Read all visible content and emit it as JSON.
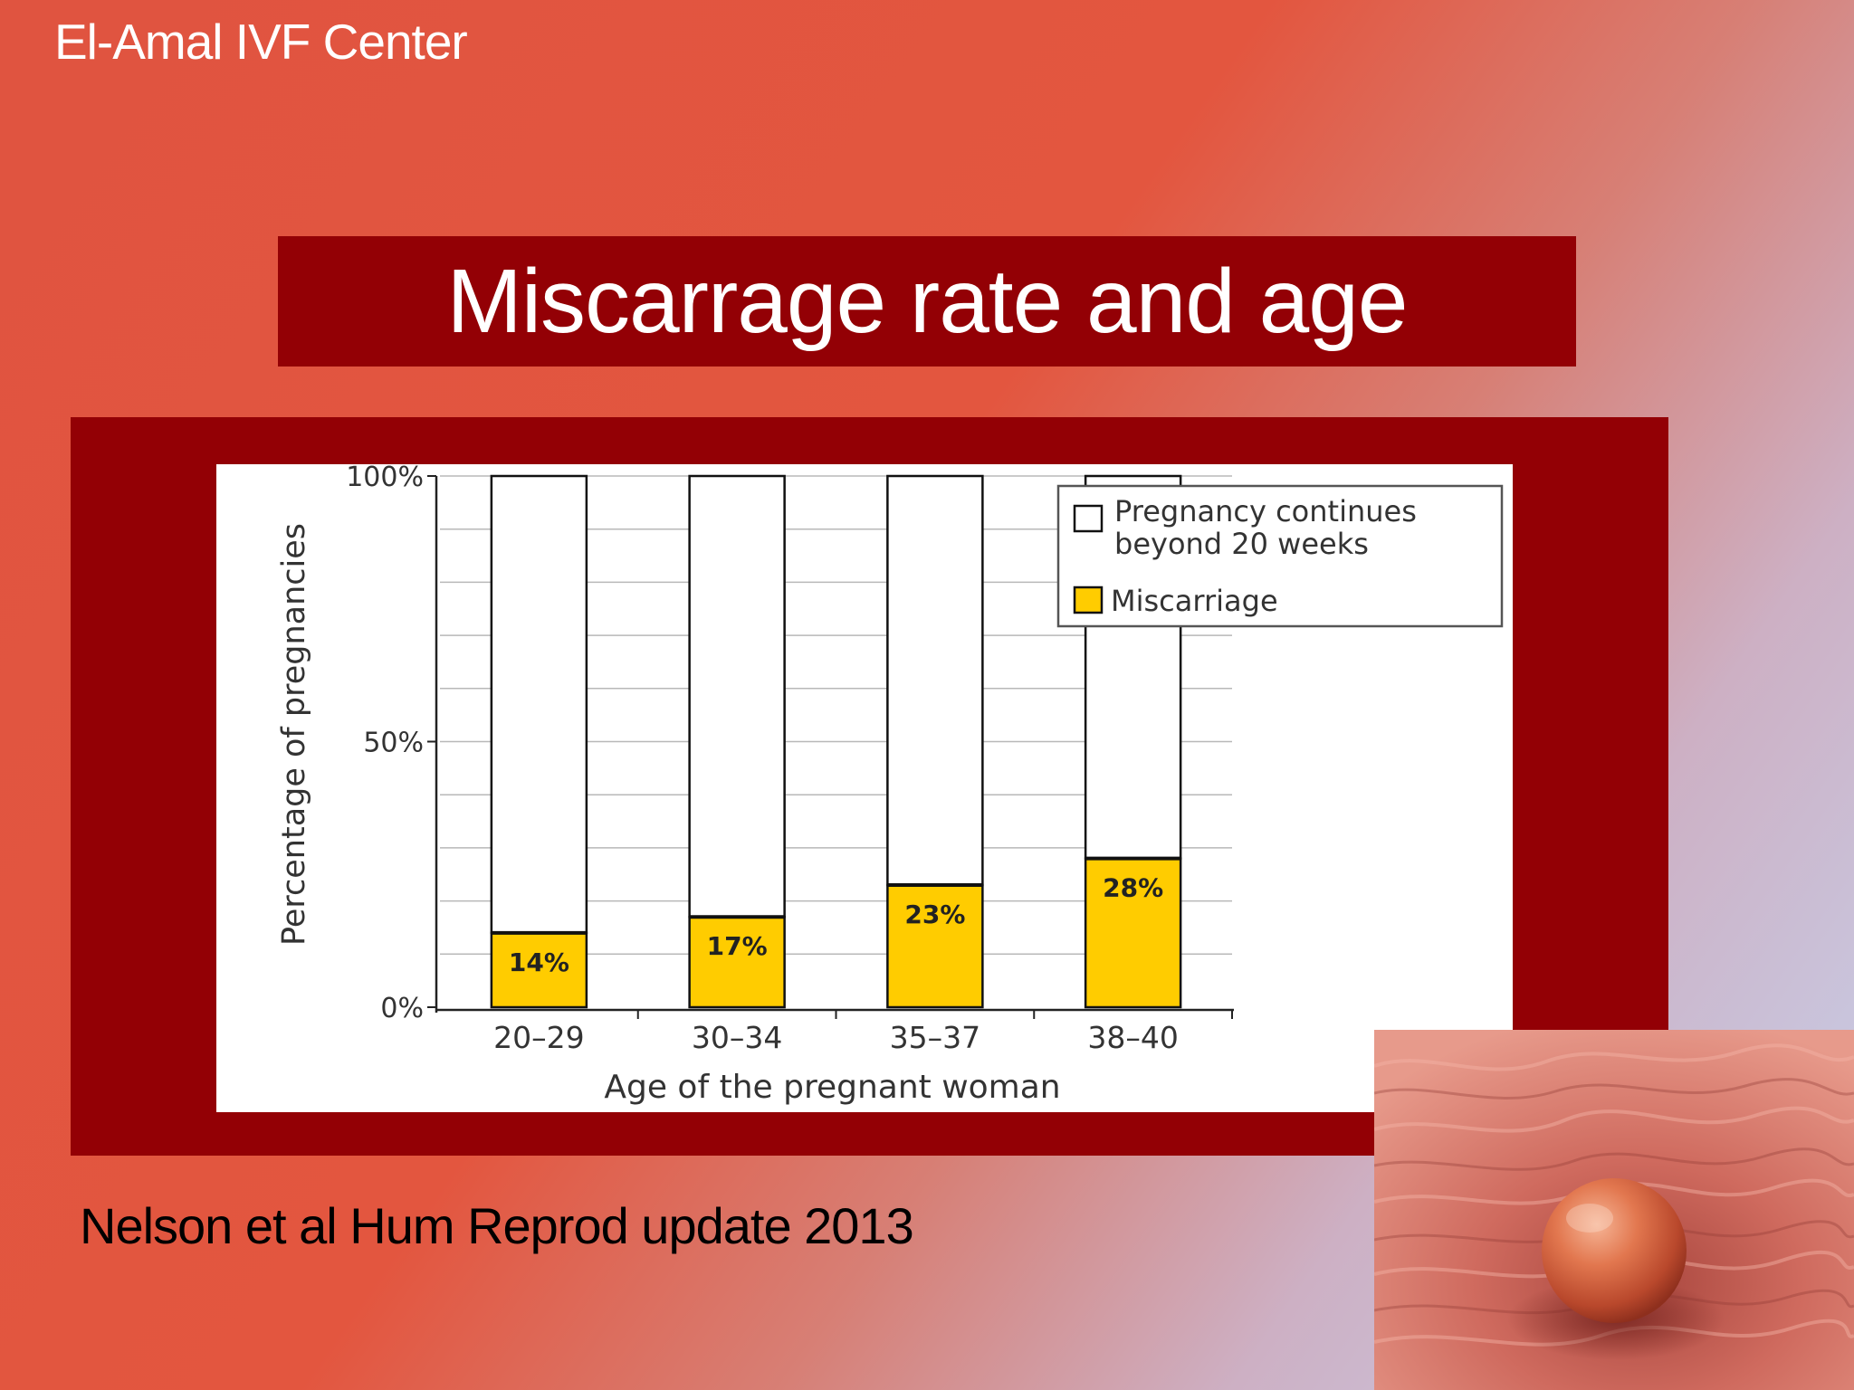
{
  "header": {
    "center_name": "El-Amal IVF Center"
  },
  "slide": {
    "title": "Miscarrage rate and age",
    "citation": "Nelson et al Hum Reprod update 2013"
  },
  "colors": {
    "background_red": "#e3563f",
    "title_box": "#930005",
    "miscarriage_bar": "#ffcc00",
    "continues_bar": "#ffffff"
  },
  "chart_data": {
    "type": "bar",
    "stacked": true,
    "categories": [
      "20–29",
      "30–34",
      "35–37",
      "38–40"
    ],
    "series": [
      {
        "name": "Miscarriage",
        "values": [
          14,
          17,
          23,
          28
        ]
      },
      {
        "name": "Pregnancy continues beyond 20 weeks",
        "values": [
          86,
          83,
          77,
          72
        ]
      }
    ],
    "data_labels": [
      "14%",
      "17%",
      "23%",
      "28%"
    ],
    "legend": [
      "Pregnancy continues beyond 20 weeks",
      "Miscarriage"
    ],
    "legend_position": "top-right",
    "title": "",
    "xlabel": "Age of the pregnant woman",
    "ylabel": "Percentage of pregnancies",
    "yticks": [
      "0%",
      "50%",
      "100%"
    ],
    "ylim": [
      0,
      100
    ],
    "grid": true
  }
}
